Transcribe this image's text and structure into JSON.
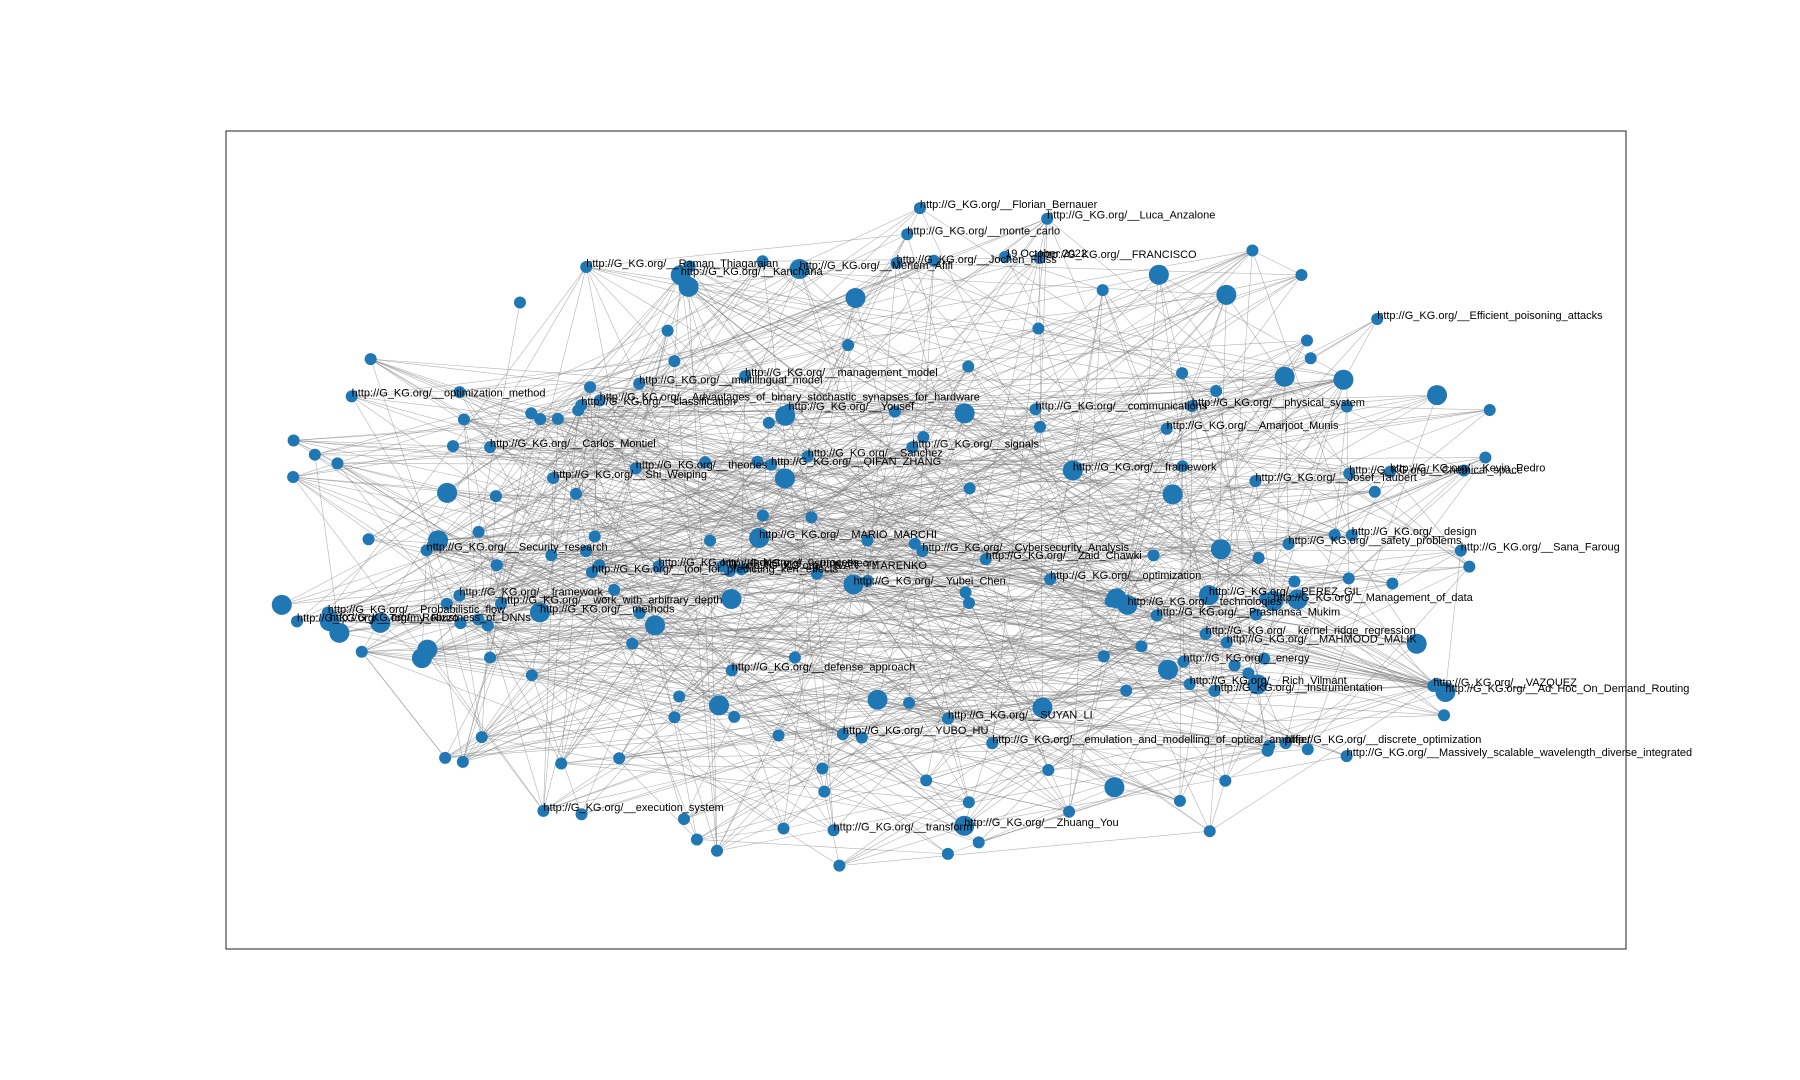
{
  "colors": {
    "node": "#1f77b4",
    "edge": "#777777",
    "frame": "#222222",
    "background": "#ffffff"
  },
  "graph": {
    "type": "network",
    "edges_shown": true,
    "labels": [
      "http://G_KG.org/__Security_research",
      "http://G_KG.org/__VAZQUEZ",
      "http://G_KG.org/__Sanchez",
      "http://G_KG.org/__Carlos_Montiel",
      "http://G_KG.org/__Instrumentation",
      "http://G_KG.org/__management_model",
      "http://G_KG.org/__Shi_Weiping",
      "http://G_KG.org/__Ad_Hoc_On_Demand_Routing",
      "http://G_KG.org/__classification",
      "http://G_KG.org/__string_theory",
      "http://G_KG.org/__Josef_Taubert",
      "http://G_KG.org/__work_with_arbitrary_depth",
      "http://G_KG.org/__transform",
      "http://G_KG.org/__Jochen_Fluss",
      "http://G_KG.org/__emulation_and_modelling_of_optical_amplifier",
      "http://G_KG.org/__safety_problems",
      "http://G_KG.org/__Robustness_of_DNNs",
      "http://G_KG.org/__Amarjoot_Munis",
      "http://G_KG.org/__Raman_Thiagarajan",
      "http://G_KG.org/__Zaid_Chawki",
      "http://G_KG.org/__MARIO_MARCHI",
      "http://G_KG.org/__SUYAN_LI",
      "http://G_KG.org/__QIFAN_ZHANG",
      "http://G_KG.org/__Sana_Faroug",
      "http://G_KG.org/__Meriem_Afifi",
      "http://G_KG.org/__optimization",
      "http://G_KG.org/__methods",
      "http://G_KG.org/__Massively_scalable_wavelength_diverse_integrated",
      "http://G_KG.org/__Tommy_Rizzo",
      "http://G_KG.org/__Luca_Anzalone",
      "http://G_KG.org/__IVAN_TITARENKO",
      "http://G_KG.org/__monte_carlo",
      "http://G_KG.org/__Management_of_data",
      "http://G_KG.org/__Yousef",
      "http://G_KG.org/__Chemical_space",
      "http://G_KG.org/__Zhuang_You",
      "http://G_KG.org/__communications",
      "http://G_KG.org/__technologies",
      "http://G_KG.org/__Yubei_Chen",
      "http://G_KG.org/__framework",
      "http://G_KG.org/__discrete_optimization",
      "http://G_KG.org/__defense_approach",
      "http://G_KG.org/__Efficient_poisoning_attacks",
      "http://G_KG.org/__Prashansa_Mukim",
      "http://G_KG.org/__YUBO_HU",
      "http://G_KG.org/__FRANCISCO",
      "http://G_KG.org/__Kevin_Pedro",
      "http://G_KG.org/__Rich_Vilmant",
      "http://G_KG.org/__Advantages_of_binary_stochastic_synapses_for_hardware",
      "http://G_KG.org/__Florian_Bernauer",
      "http://G_KG.org/__physical_system",
      "http://G_KG.org/__execution_system",
      "http://G_KG.org/__industry_4_0_process",
      "http://G_KG.org/__theories",
      "http://G_KG.org/__design",
      "http://G_KG.org/__kernel_ridge_regression",
      "http://G_KG.org/__Cybersecurity_Analysis",
      "http://G_KG.org/__optimization_method",
      "http://G_KG.org/__multilingual_model",
      "http://G_KG.org/__Kanchana",
      "http://G_KG.org/__PEREZ_GIL",
      "http://G_KG.org/__MAHMOOD_MALIK",
      "http://G_KG.org/__energy",
      "http://G_KG.org/__framework_",
      "http://G_KG.org/__tool_for_predicting_kerr_effects",
      "http://G_KG.org/__Probabilistic_flow",
      "19 October 2022",
      "http://G_KG.org/__signals"
    ]
  }
}
